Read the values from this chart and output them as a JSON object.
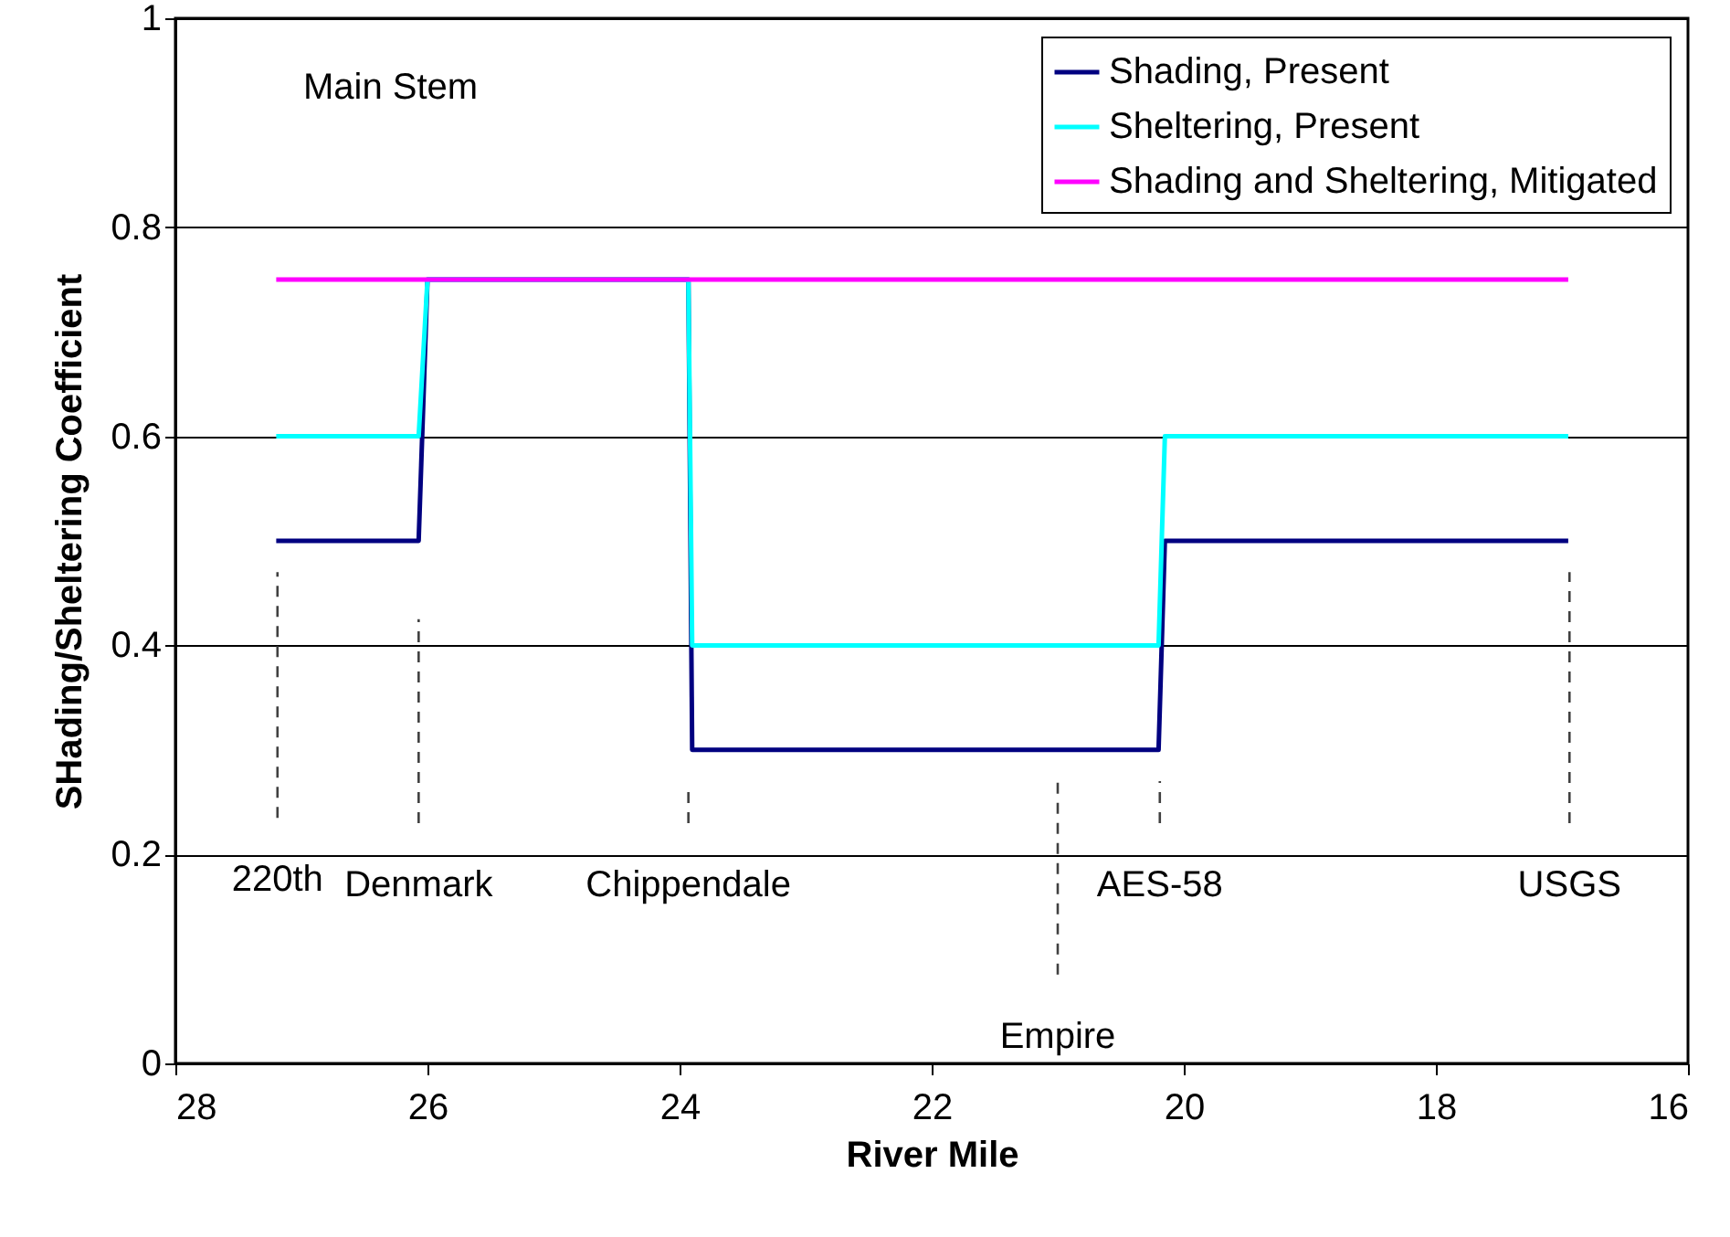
{
  "chart_data": {
    "type": "line",
    "xlabel": "River Mile",
    "ylabel": "SHading/Sheltering Coefficient",
    "xlim": [
      28,
      16
    ],
    "xticks": [
      28,
      26,
      24,
      22,
      20,
      18,
      16
    ],
    "ylim": [
      0,
      1
    ],
    "yticks": [
      0,
      0.2,
      0.4,
      0.6,
      0.8,
      1
    ],
    "grid": "y",
    "legend": "top right",
    "marker": "none",
    "line_style": "solid",
    "series": [
      {
        "name": "Shading, Present",
        "color": "#000080",
        "x": [
          27.2,
          26.07,
          26.0,
          23.93,
          23.9,
          20.2,
          20.15,
          16.95
        ],
        "values": [
          0.5,
          0.5,
          0.75,
          0.75,
          0.3,
          0.3,
          0.5,
          0.5
        ]
      },
      {
        "name": "Sheltering, Present",
        "color": "#00ffff",
        "x": [
          27.2,
          26.07,
          26.0,
          23.93,
          23.9,
          20.2,
          20.15,
          16.95
        ],
        "values": [
          0.6,
          0.6,
          0.75,
          0.75,
          0.4,
          0.4,
          0.6,
          0.6
        ]
      },
      {
        "name": "Shading and Sheltering, Mitigated",
        "color": "#ff00ff",
        "x": [
          27.2,
          16.95
        ],
        "values": [
          0.75,
          0.75
        ]
      },
      {
        "color": "#404040",
        "line_style": "dashed",
        "x": [
          27.19,
          27.19
        ],
        "values": [
          0.235,
          0.47
        ]
      },
      {
        "color": "#404040",
        "line_style": "dashed",
        "x": [
          26.07,
          26.07
        ],
        "values": [
          0.23,
          0.425
        ]
      },
      {
        "color": "#404040",
        "line_style": "dashed",
        "x": [
          23.93,
          23.93
        ],
        "values": [
          0.23,
          0.26
        ]
      },
      {
        "color": "#404040",
        "line_style": "dashed",
        "x": [
          21.0,
          21.0
        ],
        "values": [
          0.085,
          0.275
        ]
      },
      {
        "color": "#404040",
        "line_style": "dashed",
        "x": [
          20.19,
          20.19
        ],
        "values": [
          0.23,
          0.27
        ]
      },
      {
        "color": "#404040",
        "line_style": "dashed",
        "x": [
          16.94,
          16.94
        ],
        "values": [
          0.23,
          0.47
        ]
      }
    ],
    "annotations": [
      "Main Stem",
      {
        "text": "220th",
        "x": 27.19,
        "y": 0.235
      },
      {
        "text": "Denmark",
        "x": 26.07,
        "y": 0.23
      },
      {
        "text": "Chippendale",
        "x": 23.93,
        "y": 0.23
      },
      {
        "text": "Empire",
        "x": 21.0,
        "y": 0.085
      },
      {
        "text": "AES-58",
        "x": 20.19,
        "y": 0.23
      },
      {
        "text": "USGS",
        "x": 16.94,
        "y": 0.23
      }
    ]
  }
}
